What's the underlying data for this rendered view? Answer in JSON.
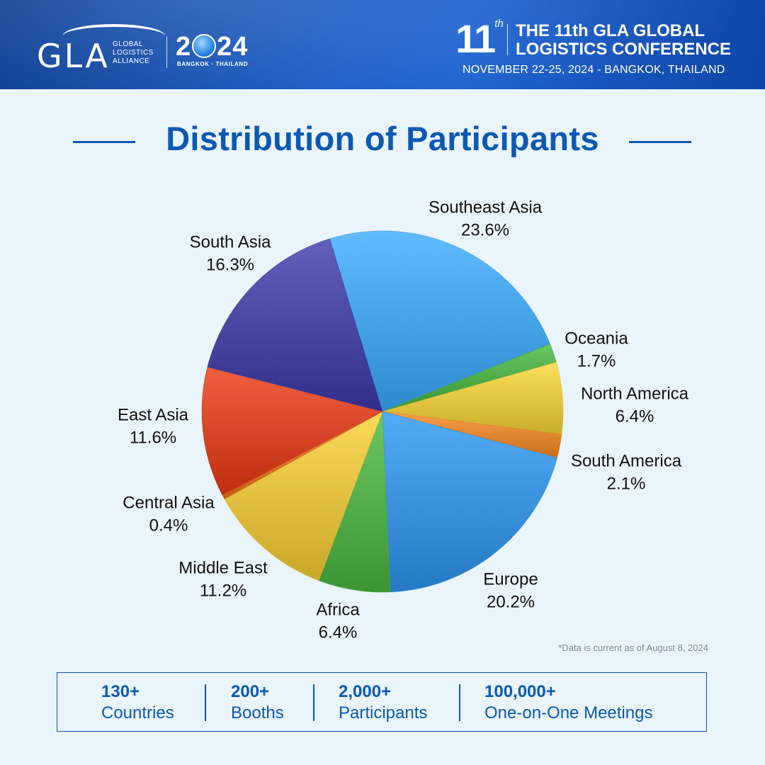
{
  "header": {
    "logo_text": "GLA",
    "logo_sub": [
      "GLOBAL",
      "LOGISTICS",
      "ALLIANCE"
    ],
    "year_left": "2",
    "year_right": "24",
    "city": "BANGKOK · THAILAND",
    "conf_number": "11",
    "conf_suffix": "th",
    "conf_title_line1": "THE 11th GLA GLOBAL",
    "conf_title_line2": "LOGISTICS CONFERENCE",
    "conf_date": "NOVEMBER 22-25, 2024 - BANGKOK, THAILAND"
  },
  "colors": {
    "brand_blue": "#0b59b3",
    "header_blue": "#1a5cc8",
    "background": "#eaf4fb"
  },
  "chart_data": {
    "type": "pie",
    "title": "Distribution of Participants",
    "slices": [
      {
        "label": "Southeast Asia",
        "value": 23.6,
        "display": "23.6%",
        "color": "#4aa6ea"
      },
      {
        "label": "Oceania",
        "value": 1.7,
        "display": "1.7%",
        "color": "#53b04d"
      },
      {
        "label": "North America",
        "value": 6.4,
        "display": "6.4%",
        "color": "#e6c946"
      },
      {
        "label": "South America",
        "value": 2.1,
        "display": "2.1%",
        "color": "#e58a34"
      },
      {
        "label": "Europe",
        "value": 20.2,
        "display": "20.2%",
        "color": "#3f95e0"
      },
      {
        "label": "Africa",
        "value": 6.4,
        "display": "6.4%",
        "color": "#58b14f"
      },
      {
        "label": "Middle East",
        "value": 11.2,
        "display": "11.2%",
        "color": "#e5c444"
      },
      {
        "label": "Central Asia",
        "value": 0.4,
        "display": "0.4%",
        "color": "#e07a2c"
      },
      {
        "label": "East Asia",
        "value": 11.6,
        "display": "11.6%",
        "color": "#d9492a"
      },
      {
        "label": "South Asia",
        "value": 16.3,
        "display": "16.3%",
        "color": "#4c4aa4"
      }
    ]
  },
  "note": "*Data is current as of August 8, 2024",
  "stats": [
    {
      "value": "130+",
      "label": "Countries"
    },
    {
      "value": "200+",
      "label": "Booths"
    },
    {
      "value": "2,000+",
      "label": "Participants"
    },
    {
      "value": "100,000+",
      "label": "One-on-One Meetings"
    }
  ]
}
